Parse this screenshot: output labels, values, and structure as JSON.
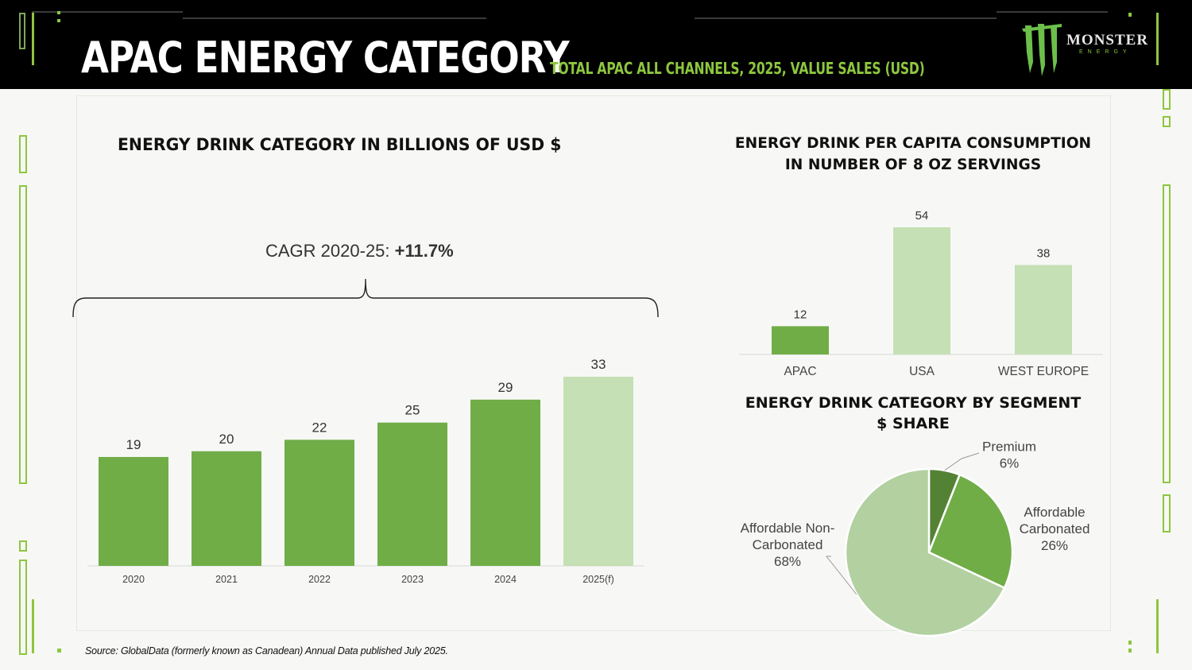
{
  "header": {
    "title": "APAC ENERGY CATEGORY",
    "subtitle": "TOTAL APAC ALL CHANNELS, 2025, VALUE SALES (USD)",
    "logo_word": "MONSTER",
    "logo_sub": "ENERGY"
  },
  "colors": {
    "accent": "#8dc63f",
    "bar_dark": "#70ad47",
    "bar_light": "#c5e0b4",
    "pie_premium": "#548235",
    "pie_affordable_carbonated": "#70ad47",
    "pie_affordable_noncarbonated": "#b2d0a0"
  },
  "left_chart": {
    "title": "ENERGY DRINK CATEGORY IN BILLIONS OF USD $",
    "cagr_label": "CAGR 2020-25: ",
    "cagr_value": "+11.7%"
  },
  "per_capita": {
    "title_line1": "ENERGY DRINK PER CAPITA CONSUMPTION",
    "title_line2": "IN NUMBER OF 8 OZ SERVINGS"
  },
  "segment": {
    "title_line1": "ENERGY DRINK CATEGORY BY SEGMENT",
    "title_line2": "$ SHARE"
  },
  "chart_data": [
    {
      "type": "bar",
      "title": "ENERGY DRINK CATEGORY IN BILLIONS OF USD $",
      "categories": [
        "2020",
        "2021",
        "2022",
        "2023",
        "2024",
        "2025(f)"
      ],
      "values": [
        19,
        20,
        22,
        25,
        29,
        33
      ],
      "forecast_index": 5,
      "ylim": [
        0,
        33
      ],
      "xlabel": "",
      "ylabel": "",
      "grid": false
    },
    {
      "type": "bar",
      "title": "ENERGY DRINK PER CAPITA CONSUMPTION IN NUMBER OF 8 OZ SERVINGS",
      "categories": [
        "APAC",
        "USA",
        "WEST EUROPE"
      ],
      "values": [
        12,
        54,
        38
      ],
      "highlight_index": 0,
      "ylim": [
        0,
        54
      ],
      "grid": false
    },
    {
      "type": "pie",
      "title": "ENERGY DRINK CATEGORY BY SEGMENT $ SHARE",
      "slices": [
        {
          "label_lines": [
            "Premium",
            "6%"
          ],
          "value": 6
        },
        {
          "label_lines": [
            "Affordable",
            "Carbonated",
            "26%"
          ],
          "value": 26
        },
        {
          "label_lines": [
            "Affordable Non-",
            "Carbonated",
            "68%"
          ],
          "value": 68
        }
      ]
    }
  ],
  "footer": {
    "source": "Source: GlobalData (formerly known as Canadean) Annual Data published July 2025."
  }
}
